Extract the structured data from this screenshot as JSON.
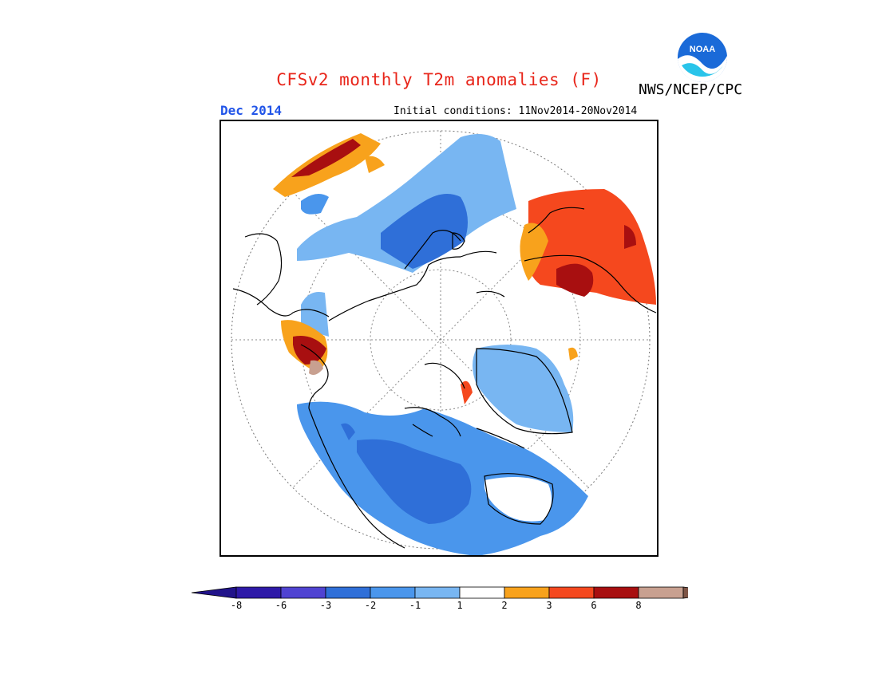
{
  "title": "CFSv2 monthly T2m anomalies (F)",
  "agency": "NWS/NCEP/CPC",
  "logo_text": "NOAA",
  "valid_month": "Dec 2014",
  "initial_conditions": "Initial conditions: 11Nov2014-20Nov2014",
  "colorbar": {
    "bins": [
      {
        "label": "-8",
        "color": "#2e19a8"
      },
      {
        "label": "-6",
        "color": "#5043d2"
      },
      {
        "label": "-3",
        "color": "#2f6fd8"
      },
      {
        "label": "-2",
        "color": "#4a96ec"
      },
      {
        "label": "-1",
        "color": "#78b6f2"
      },
      {
        "label": "1",
        "color": "#ffffff"
      },
      {
        "label": "2",
        "color": "#f8a21c"
      },
      {
        "label": "3",
        "color": "#f5481e"
      },
      {
        "label": "6",
        "color": "#a80f10"
      },
      {
        "label": "8",
        "color": "#c8a090"
      }
    ],
    "below_color": "#21138a",
    "above_color": "#7e5546"
  }
}
